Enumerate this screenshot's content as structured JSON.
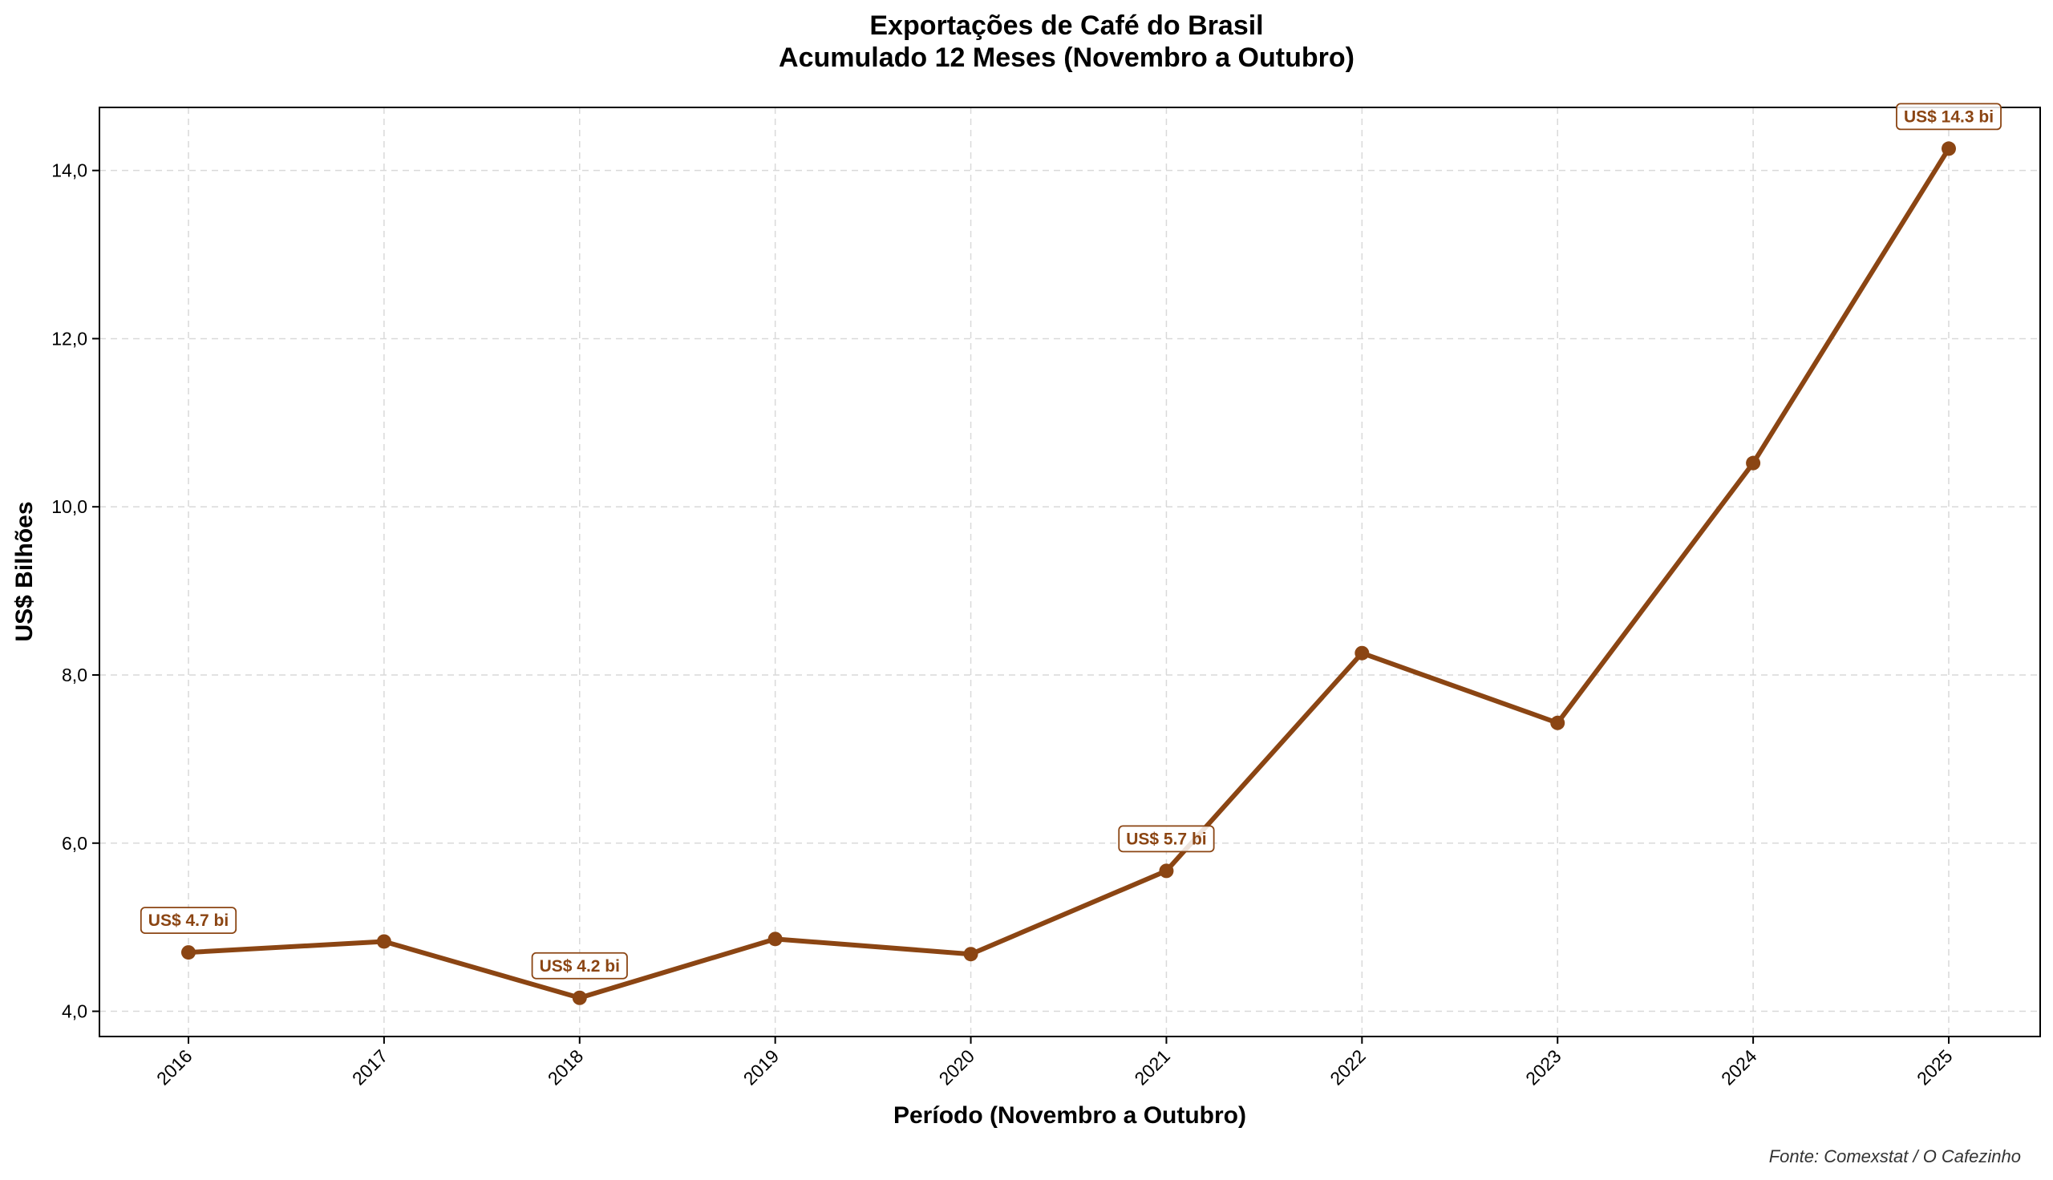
{
  "chart_data": {
    "type": "line",
    "title_line1": "Exportações de Café do Brasil",
    "title_line2": "Acumulado 12 Meses (Novembro a Outubro)",
    "xlabel": "Período (Novembro a Outubro)",
    "ylabel": "US$ Bilhões",
    "source": "Fonte: Comexstat / O Cafezinho",
    "categories": [
      "2016",
      "2017",
      "2018",
      "2019",
      "2020",
      "2021",
      "2022",
      "2023",
      "2024",
      "2025"
    ],
    "values": [
      4.7,
      4.83,
      4.16,
      4.86,
      4.68,
      5.67,
      8.26,
      7.43,
      10.52,
      14.26
    ],
    "ylim": [
      3.7,
      14.75
    ],
    "yticks": [
      4,
      6,
      8,
      10,
      12,
      14
    ],
    "ytick_labels": [
      "4,0",
      "6,0",
      "8,0",
      "10,0",
      "12,0",
      "14,0"
    ],
    "grid": true,
    "line_color": "#8B4513",
    "annotations": [
      {
        "index": 0,
        "text": "US$ 4.7 bi"
      },
      {
        "index": 2,
        "text": "US$ 4.2 bi"
      },
      {
        "index": 5,
        "text": "US$ 5.7 bi"
      },
      {
        "index": 9,
        "text": "US$ 14.3 bi"
      }
    ]
  }
}
